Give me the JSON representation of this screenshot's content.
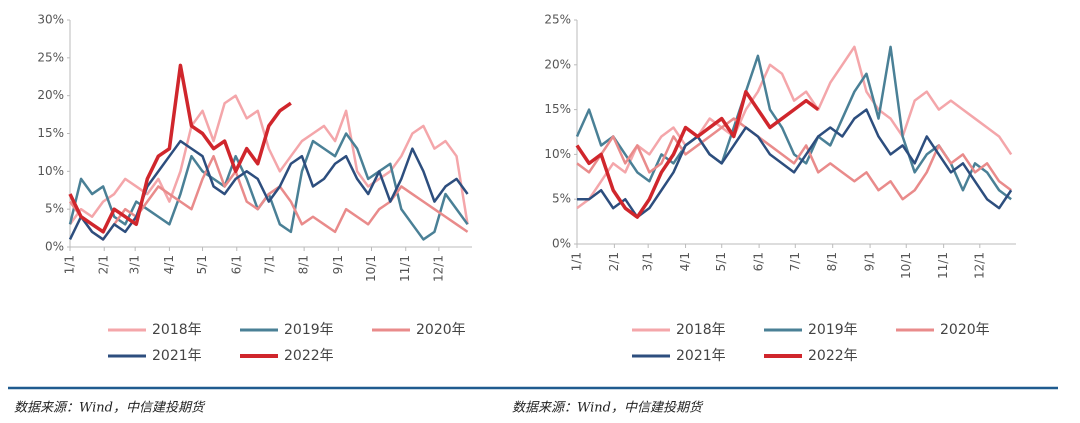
{
  "chart_data": [
    {
      "type": "line",
      "legend": "bottom",
      "x": [
        1,
        11,
        21,
        31,
        41,
        51,
        61,
        71,
        81,
        91,
        101,
        111,
        121,
        131,
        141,
        151,
        161,
        171,
        181,
        191,
        201,
        211,
        221,
        231,
        241,
        251,
        261,
        271,
        281,
        291,
        301,
        311,
        321,
        331,
        341,
        351,
        361
      ],
      "xlim": [
        1,
        365
      ],
      "xticks": [
        {
          "value": 1,
          "label": "1/1"
        },
        {
          "value": 32,
          "label": "2/1"
        },
        {
          "value": 60,
          "label": "3/1"
        },
        {
          "value": 91,
          "label": "4/1"
        },
        {
          "value": 121,
          "label": "5/1"
        },
        {
          "value": 152,
          "label": "6/1"
        },
        {
          "value": 182,
          "label": "7/1"
        },
        {
          "value": 213,
          "label": "8/1"
        },
        {
          "value": 244,
          "label": "9/1"
        },
        {
          "value": 274,
          "label": "10/1"
        },
        {
          "value": 305,
          "label": "11/1"
        },
        {
          "value": 335,
          "label": "12/1"
        }
      ],
      "ylim": [
        0,
        30
      ],
      "yticks": [
        {
          "value": 0,
          "label": "0%"
        },
        {
          "value": 5,
          "label": "5%"
        },
        {
          "value": 10,
          "label": "10%"
        },
        {
          "value": 15,
          "label": "15%"
        },
        {
          "value": 20,
          "label": "20%"
        },
        {
          "value": 25,
          "label": "25%"
        },
        {
          "value": 30,
          "label": "30%"
        }
      ],
      "series": [
        {
          "name": "2018年",
          "color": "#f4a6aa",
          "values": [
            3,
            5,
            4,
            6,
            7,
            9,
            8,
            7,
            9,
            6,
            10,
            16,
            18,
            14,
            19,
            20,
            17,
            18,
            13,
            10,
            12,
            14,
            15,
            16,
            14,
            18,
            10,
            8,
            9,
            10,
            12,
            15,
            16,
            13,
            14,
            12,
            3
          ]
        },
        {
          "name": "2019年",
          "color": "#4a8096",
          "values": [
            3,
            9,
            7,
            8,
            4,
            3,
            6,
            5,
            4,
            3,
            7,
            12,
            10,
            9,
            8,
            12,
            9,
            5,
            7,
            3,
            2,
            10,
            14,
            13,
            12,
            15,
            13,
            9,
            10,
            11,
            5,
            3,
            1,
            2,
            7,
            5,
            3
          ]
        },
        {
          "name": "2020年",
          "color": "#e98b8b",
          "values": [
            6,
            4,
            2,
            1,
            3,
            5,
            4,
            6,
            8,
            7,
            6,
            5,
            9,
            12,
            8,
            10,
            6,
            5,
            7,
            8,
            6,
            3,
            4,
            3,
            2,
            5,
            4,
            3,
            5,
            6,
            8,
            7,
            6,
            5,
            4,
            3,
            2
          ]
        },
        {
          "name": "2021年",
          "color": "#2d4e7e",
          "values": [
            1,
            4,
            2,
            1,
            3,
            2,
            4,
            8,
            10,
            12,
            14,
            13,
            12,
            8,
            7,
            9,
            10,
            9,
            6,
            8,
            11,
            12,
            8,
            9,
            11,
            12,
            9,
            7,
            10,
            6,
            9,
            13,
            10,
            6,
            8,
            9,
            7
          ]
        },
        {
          "name": "2022年",
          "color": "#d0262c",
          "values": [
            7,
            4,
            3,
            2,
            5,
            4,
            3,
            9,
            12,
            13,
            24,
            16,
            15,
            13,
            14,
            10,
            13,
            11,
            16,
            18,
            19,
            null,
            null,
            null,
            null,
            null,
            null,
            null,
            null,
            null,
            null,
            null,
            null,
            null,
            null,
            null,
            null
          ]
        }
      ]
    },
    {
      "type": "line",
      "legend": "bottom",
      "x": [
        1,
        11,
        21,
        31,
        41,
        51,
        61,
        71,
        81,
        91,
        101,
        111,
        121,
        131,
        141,
        151,
        161,
        171,
        181,
        191,
        201,
        211,
        221,
        231,
        241,
        251,
        261,
        271,
        281,
        291,
        301,
        311,
        321,
        331,
        341,
        351,
        361
      ],
      "xlim": [
        1,
        365
      ],
      "xticks": [
        {
          "value": 1,
          "label": "1/1"
        },
        {
          "value": 32,
          "label": "2/1"
        },
        {
          "value": 60,
          "label": "3/1"
        },
        {
          "value": 91,
          "label": "4/1"
        },
        {
          "value": 121,
          "label": "5/1"
        },
        {
          "value": 152,
          "label": "6/1"
        },
        {
          "value": 182,
          "label": "7/1"
        },
        {
          "value": 213,
          "label": "8/1"
        },
        {
          "value": 244,
          "label": "9/1"
        },
        {
          "value": 274,
          "label": "10/1"
        },
        {
          "value": 305,
          "label": "11/1"
        },
        {
          "value": 335,
          "label": "12/1"
        }
      ],
      "ylim": [
        0,
        25
      ],
      "yticks": [
        {
          "value": 0,
          "label": "0%"
        },
        {
          "value": 5,
          "label": "5%"
        },
        {
          "value": 10,
          "label": "10%"
        },
        {
          "value": 15,
          "label": "15%"
        },
        {
          "value": 20,
          "label": "20%"
        },
        {
          "value": 25,
          "label": "25%"
        }
      ],
      "series": [
        {
          "name": "2018年",
          "color": "#f4a6aa",
          "values": [
            4,
            5,
            7,
            9,
            8,
            11,
            10,
            12,
            13,
            11,
            12,
            14,
            13,
            12,
            15,
            17,
            20,
            19,
            16,
            17,
            15,
            18,
            20,
            22,
            17,
            15,
            14,
            12,
            16,
            17,
            15,
            16,
            15,
            14,
            13,
            12,
            10
          ]
        },
        {
          "name": "2019年",
          "color": "#4a8096",
          "values": [
            12,
            15,
            11,
            12,
            10,
            8,
            7,
            10,
            9,
            11,
            12,
            10,
            9,
            13,
            17,
            21,
            15,
            13,
            10,
            9,
            12,
            11,
            14,
            17,
            19,
            14,
            22,
            12,
            8,
            10,
            11,
            9,
            6,
            9,
            8,
            6,
            5
          ]
        },
        {
          "name": "2020年",
          "color": "#e98b8b",
          "values": [
            9,
            8,
            10,
            12,
            9,
            11,
            8,
            9,
            12,
            10,
            11,
            12,
            13,
            14,
            13,
            12,
            11,
            10,
            9,
            11,
            8,
            9,
            8,
            7,
            8,
            6,
            7,
            5,
            6,
            8,
            11,
            9,
            10,
            8,
            9,
            7,
            6
          ]
        },
        {
          "name": "2021年",
          "color": "#2d4e7e",
          "values": [
            5,
            5,
            6,
            4,
            5,
            3,
            4,
            6,
            8,
            11,
            12,
            10,
            9,
            11,
            13,
            12,
            10,
            9,
            8,
            10,
            12,
            13,
            12,
            14,
            15,
            12,
            10,
            11,
            9,
            12,
            10,
            8,
            9,
            7,
            5,
            4,
            6
          ]
        },
        {
          "name": "2022年",
          "color": "#d0262c",
          "values": [
            11,
            9,
            10,
            6,
            4,
            3,
            5,
            8,
            10,
            13,
            12,
            13,
            14,
            12,
            17,
            15,
            13,
            14,
            15,
            16,
            15,
            null,
            null,
            null,
            null,
            null,
            null,
            null,
            null,
            null,
            null,
            null,
            null,
            null,
            null,
            null,
            null
          ]
        }
      ]
    }
  ],
  "sources": [
    "数据来源：Wind，中信建投期货",
    "数据来源：Wind，中信建投期货"
  ]
}
